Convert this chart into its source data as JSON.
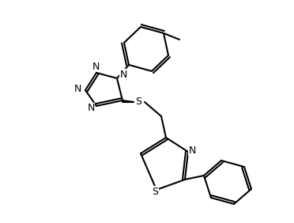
{
  "bg": "#ffffff",
  "lc": "#000000",
  "lw": 1.5,
  "dlw": 2.8,
  "atoms": {
    "N_label": "N",
    "S_label": "S"
  }
}
